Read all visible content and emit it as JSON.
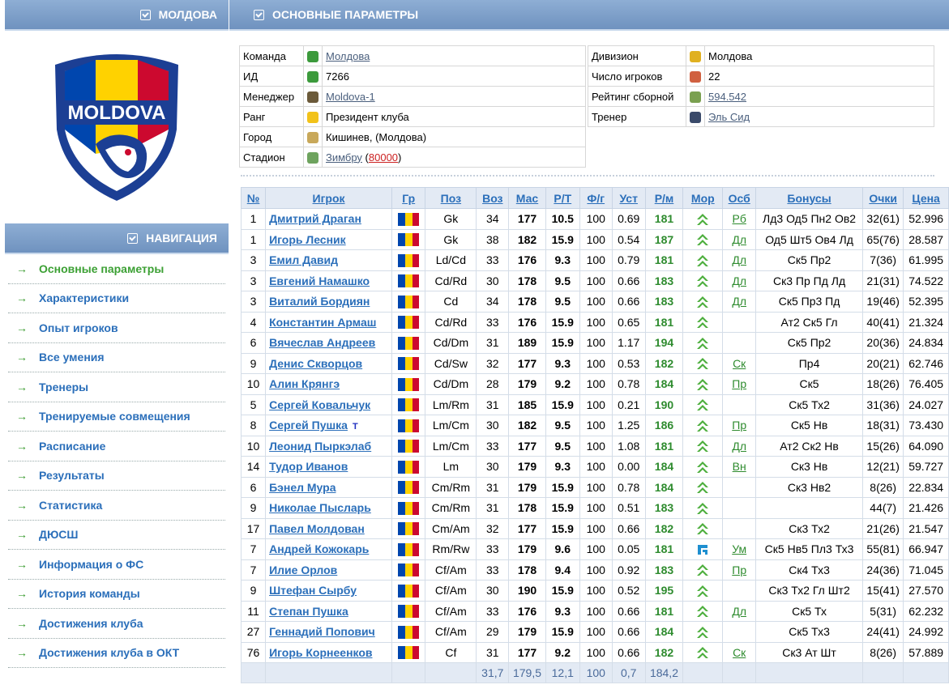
{
  "left_header": {
    "title": "МОЛДОВА"
  },
  "logo": {
    "text": "MOLDOVA"
  },
  "nav_header": {
    "title": "НАВИГАЦИЯ"
  },
  "nav": [
    {
      "label": "Основные параметры",
      "active": true
    },
    {
      "label": "Характеристики"
    },
    {
      "label": "Опыт игроков"
    },
    {
      "label": "Все умения"
    },
    {
      "label": "Тренеры"
    },
    {
      "label": "Тренируемые совмещения"
    },
    {
      "label": "Расписание"
    },
    {
      "label": "Результаты"
    },
    {
      "label": "Статистика"
    },
    {
      "label": "ДЮСШ"
    },
    {
      "label": "Информация о ФС"
    },
    {
      "label": "История команды"
    },
    {
      "label": "Достижения клуба"
    },
    {
      "label": "Достижения клуба в ОКТ"
    }
  ],
  "main_header": {
    "title": "ОСНОВНЫЕ ПАРАМЕТРЫ"
  },
  "info_left": [
    {
      "label": "Команда",
      "value": "Молдова",
      "link": true
    },
    {
      "label": "ИД",
      "value": "7266"
    },
    {
      "label": "Менеджер",
      "value": "Moldova-1",
      "link": true
    },
    {
      "label": "Ранг",
      "value": "Президент клуба"
    },
    {
      "label": "Город",
      "value": "Кишинев, (Молдова)"
    },
    {
      "label": "Стадион",
      "value": "Зимбру",
      "capacity": "80000"
    }
  ],
  "info_right": [
    {
      "label": "Дивизион",
      "value": "Молдова"
    },
    {
      "label": "Число игроков",
      "value": "22"
    },
    {
      "label": "Рейтинг сборной",
      "value": "594.542",
      "link": true
    },
    {
      "label": "Тренер",
      "value": "Эль Сид",
      "link": true
    }
  ],
  "players_table": {
    "headers": [
      "№",
      "Игрок",
      "Гр",
      "Поз",
      "Воз",
      "Мас",
      "Р/Т",
      "Ф/г",
      "Уст",
      "Р/м",
      "Мор",
      "Осб",
      "Бонусы",
      "Очки",
      "Цена"
    ],
    "rows": [
      {
        "num": "1",
        "name": "Дмитрий Драган",
        "pos": "Gk",
        "age": "34",
        "mas": "177",
        "rt": "10.5",
        "fg": "100",
        "ust": "0.69",
        "rm": "181",
        "osb": "Рб",
        "bonus": "Лд3 Од5 Пн2 Ов2",
        "pts": "32(61)",
        "price": "52.996"
      },
      {
        "num": "1",
        "name": "Игорь Лесник",
        "pos": "Gk",
        "age": "38",
        "mas": "182",
        "rt": "15.9",
        "fg": "100",
        "ust": "0.54",
        "rm": "187",
        "osb": "Дл",
        "bonus": "Од5 Шт5 Ов4 Лд",
        "pts": "65(76)",
        "price": "28.587"
      },
      {
        "num": "3",
        "name": "Емил Давид",
        "pos": "Ld/Cd",
        "age": "33",
        "mas": "176",
        "rt": "9.3",
        "fg": "100",
        "ust": "0.79",
        "rm": "181",
        "osb": "Дл",
        "bonus": "Ск5 Пр2",
        "pts": "7(36)",
        "price": "61.995"
      },
      {
        "num": "3",
        "name": "Евгений Намашко",
        "pos": "Cd/Rd",
        "age": "30",
        "mas": "178",
        "rt": "9.5",
        "fg": "100",
        "ust": "0.66",
        "rm": "183",
        "osb": "Дл",
        "bonus": "Ск3 Пр Пд Лд",
        "pts": "21(31)",
        "price": "74.522"
      },
      {
        "num": "3",
        "name": "Виталий Бордиян",
        "pos": "Cd",
        "age": "34",
        "mas": "178",
        "rt": "9.5",
        "fg": "100",
        "ust": "0.66",
        "rm": "183",
        "osb": "Дл",
        "bonus": "Ск5 Пр3 Пд",
        "pts": "19(46)",
        "price": "52.395"
      },
      {
        "num": "4",
        "name": "Константин Армаш",
        "pos": "Cd/Rd",
        "age": "33",
        "mas": "176",
        "rt": "15.9",
        "fg": "100",
        "ust": "0.65",
        "rm": "181",
        "osb": "",
        "bonus": "Ат2 Ск5 Гл",
        "pts": "40(41)",
        "price": "21.324"
      },
      {
        "num": "6",
        "name": "Вячеслав Андреев",
        "pos": "Cd/Dm",
        "age": "31",
        "mas": "189",
        "rt": "15.9",
        "fg": "100",
        "ust": "1.17",
        "rm": "194",
        "osb": "",
        "bonus": "Ск5 Пр2",
        "pts": "20(36)",
        "price": "24.834"
      },
      {
        "num": "9",
        "name": "Денис Скворцов",
        "pos": "Cd/Sw",
        "age": "32",
        "mas": "177",
        "rt": "9.3",
        "fg": "100",
        "ust": "0.53",
        "rm": "182",
        "osb": "Ск",
        "bonus": "Пр4",
        "pts": "20(21)",
        "price": "62.746"
      },
      {
        "num": "10",
        "name": "Алин Крянгэ",
        "pos": "Cd/Dm",
        "age": "28",
        "mas": "179",
        "rt": "9.2",
        "fg": "100",
        "ust": "0.78",
        "rm": "184",
        "osb": "Пр",
        "bonus": "Ск5",
        "pts": "18(26)",
        "price": "76.405"
      },
      {
        "num": "5",
        "name": "Сергей Ковальчук",
        "pos": "Lm/Rm",
        "age": "31",
        "mas": "185",
        "rt": "15.9",
        "fg": "100",
        "ust": "0.21",
        "rm": "190",
        "osb": "",
        "bonus": "Ск5 Тх2",
        "pts": "31(36)",
        "price": "24.027"
      },
      {
        "num": "8",
        "name": "Сергей Пушка",
        "tag": "T",
        "pos": "Lm/Cm",
        "age": "30",
        "mas": "182",
        "rt": "9.5",
        "fg": "100",
        "ust": "1.25",
        "rm": "186",
        "osb": "Пр",
        "bonus": "Ск5 Нв",
        "pts": "18(31)",
        "price": "73.430"
      },
      {
        "num": "10",
        "name": "Леонид Пыркэлаб",
        "pos": "Lm/Cm",
        "age": "33",
        "mas": "177",
        "rt": "9.5",
        "fg": "100",
        "ust": "1.08",
        "rm": "181",
        "osb": "Дл",
        "bonus": "Ат2 Ск2 Нв",
        "pts": "15(26)",
        "price": "64.090"
      },
      {
        "num": "14",
        "name": "Тудор Иванов",
        "pos": "Lm",
        "age": "30",
        "mas": "179",
        "rt": "9.3",
        "fg": "100",
        "ust": "0.00",
        "rm": "184",
        "osb": "Вн",
        "bonus": "Ск3 Нв",
        "pts": "12(21)",
        "price": "59.727"
      },
      {
        "num": "6",
        "name": "Бэнел Мура",
        "pos": "Cm/Rm",
        "age": "31",
        "mas": "179",
        "rt": "15.9",
        "fg": "100",
        "ust": "0.78",
        "rm": "184",
        "osb": "",
        "bonus": "Ск3 Нв2",
        "pts": "8(26)",
        "price": "22.834"
      },
      {
        "num": "9",
        "name": "Николае Пысларь",
        "pos": "Cm/Rm",
        "age": "31",
        "mas": "178",
        "rt": "15.9",
        "fg": "100",
        "ust": "0.51",
        "rm": "183",
        "osb": "",
        "bonus": "",
        "pts": "44(7)",
        "price": "21.426"
      },
      {
        "num": "17",
        "name": "Павел Молдован",
        "pos": "Cm/Am",
        "age": "32",
        "mas": "177",
        "rt": "15.9",
        "fg": "100",
        "ust": "0.66",
        "rm": "182",
        "osb": "",
        "bonus": "Ск3 Тх2",
        "pts": "21(26)",
        "price": "21.547"
      },
      {
        "num": "7",
        "name": "Андрей Кожокарь",
        "pos": "Rm/Rw",
        "age": "33",
        "mas": "179",
        "rt": "9.6",
        "fg": "100",
        "ust": "0.05",
        "rm": "181",
        "osb": "Ум",
        "bonus": "Ск5 Нв5 Пл3 Тх3",
        "pts": "55(81)",
        "price": "66.947",
        "mor": "side"
      },
      {
        "num": "7",
        "name": "Илие Орлов",
        "pos": "Cf/Am",
        "age": "33",
        "mas": "178",
        "rt": "9.4",
        "fg": "100",
        "ust": "0.92",
        "rm": "183",
        "osb": "Пр",
        "bonus": "Ск4 Тх3",
        "pts": "24(36)",
        "price": "71.045"
      },
      {
        "num": "9",
        "name": "Штефан Сырбу",
        "pos": "Cf/Am",
        "age": "30",
        "mas": "190",
        "rt": "15.9",
        "fg": "100",
        "ust": "0.52",
        "rm": "195",
        "osb": "",
        "bonus": "Ск3 Тх2 Гл Шт2",
        "pts": "15(41)",
        "price": "27.570"
      },
      {
        "num": "11",
        "name": "Степан Пушка",
        "pos": "Cf/Am",
        "age": "33",
        "mas": "176",
        "rt": "9.3",
        "fg": "100",
        "ust": "0.66",
        "rm": "181",
        "osb": "Дл",
        "bonus": "Ск5 Тх",
        "pts": "5(31)",
        "price": "62.232"
      },
      {
        "num": "27",
        "name": "Геннадий Попович",
        "pos": "Cf/Am",
        "age": "29",
        "mas": "179",
        "rt": "15.9",
        "fg": "100",
        "ust": "0.66",
        "rm": "184",
        "osb": "",
        "bonus": "Ск5 Тх3",
        "pts": "24(41)",
        "price": "24.992"
      },
      {
        "num": "76",
        "name": "Игорь Корнеенков",
        "pos": "Cf",
        "age": "31",
        "mas": "177",
        "rt": "9.2",
        "fg": "100",
        "ust": "0.66",
        "rm": "182",
        "osb": "Ск",
        "bonus": "Ск3 Ат Шт",
        "pts": "8(26)",
        "price": "57.889"
      }
    ],
    "footer": {
      "age": "31,7",
      "mas": "179,5",
      "rt": "12,1",
      "fg": "100",
      "ust": "0,7",
      "rm": "184,2"
    }
  },
  "colors": {
    "header_bg": "#7b9cc8",
    "link": "#2b6fba",
    "green": "#3ca034",
    "flag_blue": "#0046ae",
    "flag_yellow": "#ffd200",
    "flag_red": "#cc092f"
  }
}
